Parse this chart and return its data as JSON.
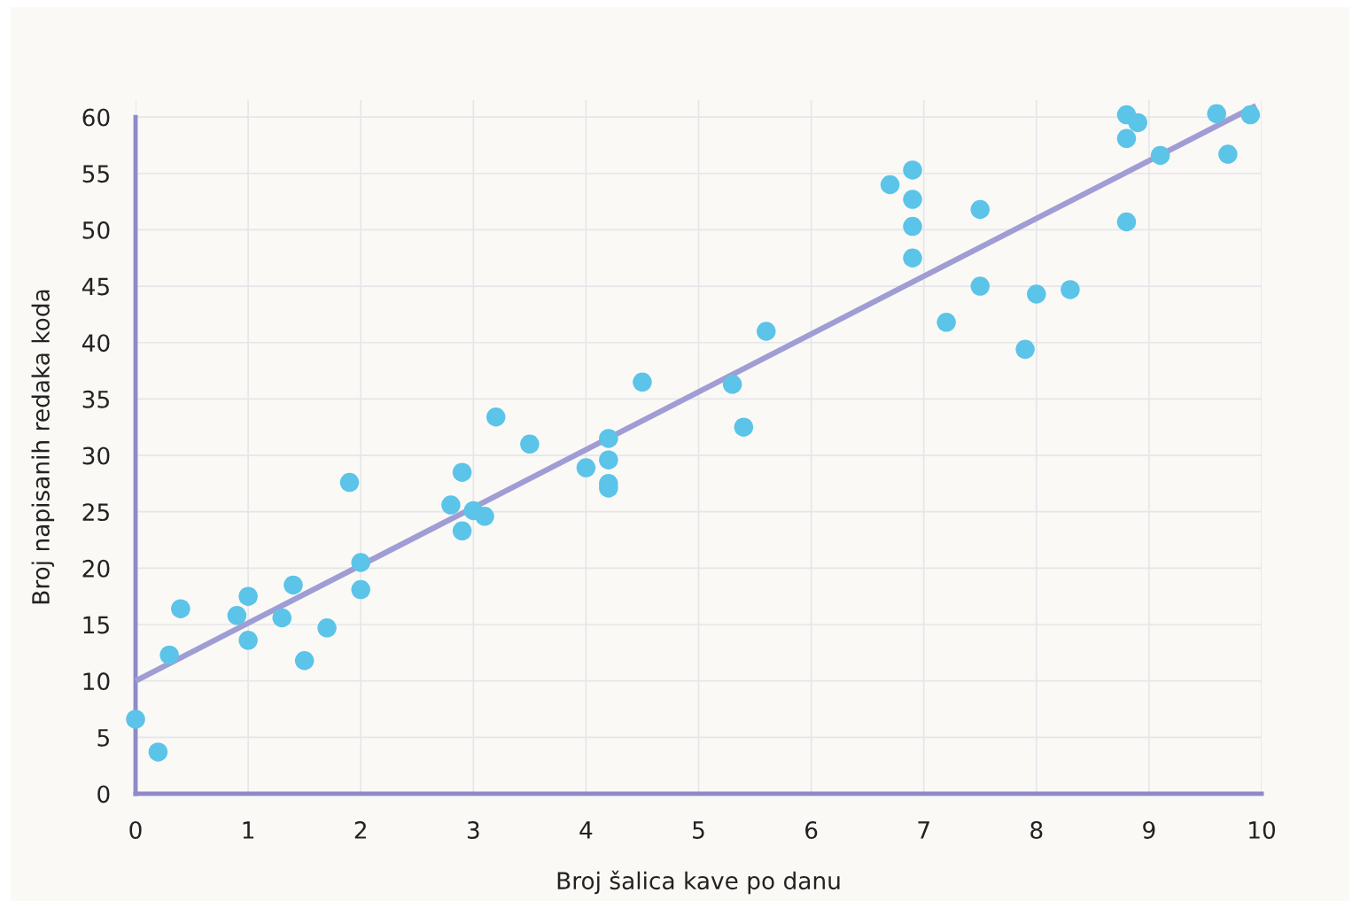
{
  "chart_data": {
    "type": "scatter",
    "xlabel": "Broj šalica kave po danu",
    "ylabel": "Broj napisanih redaka koda",
    "xlim": [
      0,
      10
    ],
    "ylim": [
      0,
      61.5
    ],
    "xticks": [
      0,
      1,
      2,
      3,
      4,
      5,
      6,
      7,
      8,
      9,
      10
    ],
    "yticks": [
      0,
      5,
      10,
      15,
      20,
      25,
      30,
      35,
      40,
      45,
      50,
      55,
      60
    ],
    "grid": true,
    "marker": "circle",
    "series": [
      {
        "color": "#5bc4e8",
        "x": [
          0,
          0.2,
          0.3,
          0.4,
          0.9,
          1.0,
          1.0,
          1.3,
          1.4,
          1.5,
          1.7,
          1.9,
          2.0,
          2.0,
          2.8,
          2.9,
          2.9,
          3.0,
          3.1,
          3.2,
          3.5,
          4.0,
          4.2,
          4.2,
          4.2,
          4.2,
          4.5,
          5.3,
          5.4,
          5.6,
          6.7,
          6.9,
          6.9,
          6.9,
          6.9,
          7.2,
          7.5,
          7.5,
          7.9,
          8.0,
          8.3,
          8.8,
          8.8,
          8.8,
          8.9,
          9.1,
          9.6,
          9.7,
          9.9
        ],
        "values": [
          6.6,
          3.7,
          12.3,
          16.4,
          15.8,
          17.5,
          13.6,
          15.6,
          18.5,
          11.8,
          14.7,
          27.6,
          20.5,
          18.1,
          25.6,
          28.5,
          23.3,
          25.1,
          24.6,
          33.4,
          31.0,
          28.9,
          31.5,
          29.6,
          27.5,
          27.1,
          36.5,
          36.3,
          32.5,
          41.0,
          54.0,
          55.3,
          52.7,
          50.3,
          47.5,
          41.8,
          51.8,
          45.0,
          39.4,
          44.3,
          44.7,
          60.2,
          58.1,
          50.7,
          59.5,
          56.6,
          60.3,
          56.7,
          60.2
        ]
      },
      {
        "type": "line",
        "color": "#a09cd4",
        "line_style": "solid",
        "marker": "none",
        "x": [
          0,
          9.95
        ],
        "values": [
          10,
          61
        ]
      }
    ]
  }
}
